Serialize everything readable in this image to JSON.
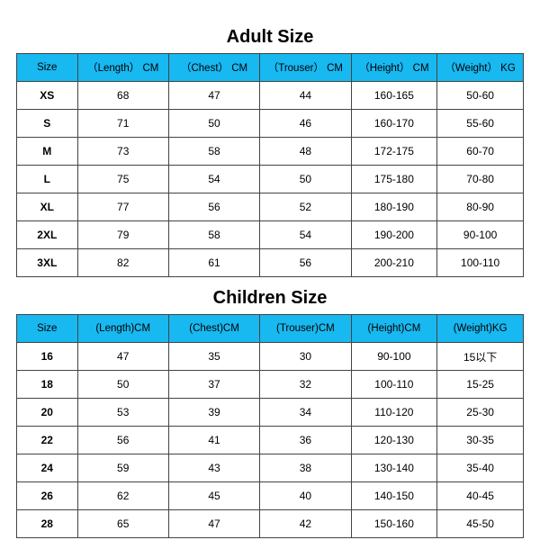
{
  "page": {
    "background_color": "#ffffff",
    "border_color": "#444444",
    "text_color": "#000000"
  },
  "adult": {
    "title": "Adult Size",
    "title_fontsize": 20,
    "title_fontweight": 700,
    "header_bg": "#18b8f0",
    "header_fontsize": 11.5,
    "cell_fontsize": 12,
    "columns": [
      "Size",
      "（Length） CM",
      "（Chest） CM",
      "（Trouser） CM",
      "（Height） CM",
      "（Weight） KG"
    ],
    "col_widths": [
      "12%",
      "18%",
      "18%",
      "18%",
      "17%",
      "17%"
    ],
    "rows": [
      [
        "XS",
        "68",
        "47",
        "44",
        "160-165",
        "50-60"
      ],
      [
        "S",
        "71",
        "50",
        "46",
        "160-170",
        "55-60"
      ],
      [
        "M",
        "73",
        "58",
        "48",
        "172-175",
        "60-70"
      ],
      [
        "L",
        "75",
        "54",
        "50",
        "175-180",
        "70-80"
      ],
      [
        "XL",
        "77",
        "56",
        "52",
        "180-190",
        "80-90"
      ],
      [
        "2XL",
        "79",
        "58",
        "54",
        "190-200",
        "90-100"
      ],
      [
        "3XL",
        "82",
        "61",
        "56",
        "200-210",
        "100-110"
      ]
    ]
  },
  "children": {
    "title": "Children Size",
    "title_fontsize": 20,
    "title_fontweight": 700,
    "header_bg": "#18b8f0",
    "header_fontsize": 11.5,
    "cell_fontsize": 12,
    "columns": [
      "Size",
      "(Length)CM",
      "(Chest)CM",
      "(Trouser)CM",
      "(Height)CM",
      "(Weight)KG"
    ],
    "col_widths": [
      "12%",
      "18%",
      "18%",
      "18%",
      "17%",
      "17%"
    ],
    "rows": [
      [
        "16",
        "47",
        "35",
        "30",
        "90-100",
        "15以下"
      ],
      [
        "18",
        "50",
        "37",
        "32",
        "100-110",
        "15-25"
      ],
      [
        "20",
        "53",
        "39",
        "34",
        "110-120",
        "25-30"
      ],
      [
        "22",
        "56",
        "41",
        "36",
        "120-130",
        "30-35"
      ],
      [
        "24",
        "59",
        "43",
        "38",
        "130-140",
        "35-40"
      ],
      [
        "26",
        "62",
        "45",
        "40",
        "140-150",
        "40-45"
      ],
      [
        "28",
        "65",
        "47",
        "42",
        "150-160",
        "45-50"
      ]
    ]
  }
}
